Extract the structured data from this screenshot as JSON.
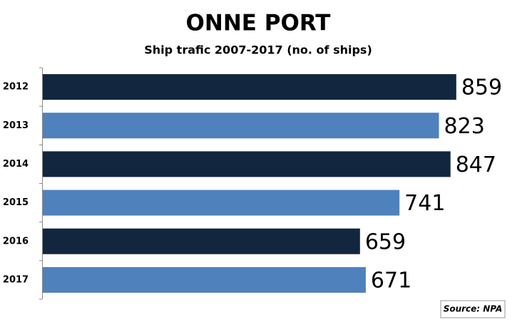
{
  "chart_data": {
    "type": "bar",
    "orientation": "horizontal",
    "title": "ONNE PORT",
    "subtitle": "Ship trafic 2007-2017 (no. of ships)",
    "categories": [
      "2012",
      "2013",
      "2014",
      "2015",
      "2016",
      "2017"
    ],
    "values": [
      859,
      823,
      847,
      741,
      659,
      671
    ],
    "colors": [
      "#12263f",
      "#4f81bd",
      "#12263f",
      "#4f81bd",
      "#12263f",
      "#4f81bd"
    ],
    "source": "Source: NPA"
  }
}
